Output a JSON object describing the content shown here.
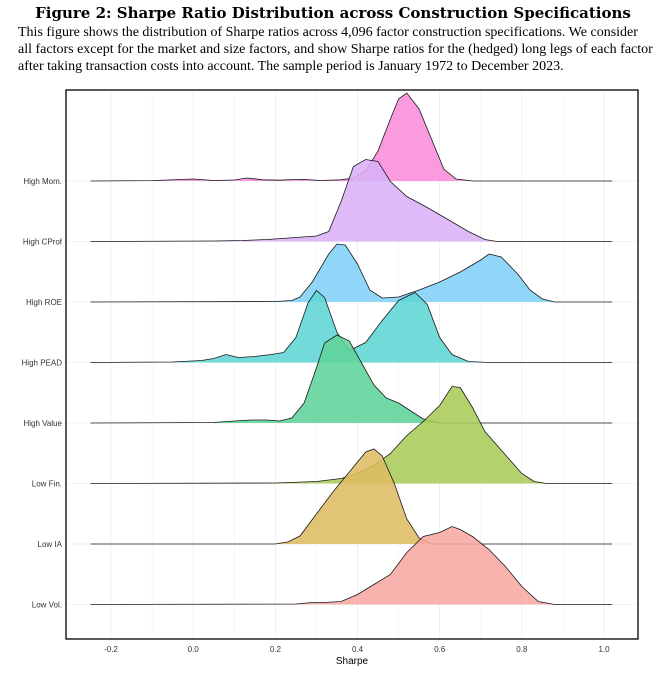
{
  "figure": {
    "title": "Figure 2: Sharpe Ratio Distribution across Construction Specifications",
    "caption": "This figure shows the distribution of Sharpe ratios across 4,096 factor construction specifications. We consider all factors except for the market and size factors, and show Sharpe ratios for the (hedged) long legs of each factor after taking transaction costs into account. The sample period is January 1972 to December 2023."
  },
  "chart_data": {
    "type": "ridgeline",
    "xlabel": "Sharpe",
    "ylabel": "",
    "xlim": [
      -0.3,
      1.1
    ],
    "x_ticks": [
      -0.2,
      0.0,
      0.2,
      0.4,
      0.6,
      0.8,
      1.0
    ],
    "x_tick_labels": [
      "-0.2",
      "0.0",
      "0.2",
      "0.4",
      "0.6",
      "0.8",
      "1.0"
    ],
    "grid": true,
    "series": [
      {
        "name": "High Mom.",
        "color": "#F98DDB",
        "points": [
          [
            -0.25,
            0
          ],
          [
            -0.1,
            0.004
          ],
          [
            0,
            0.02
          ],
          [
            0.05,
            0.005
          ],
          [
            0.1,
            0.01
          ],
          [
            0.13,
            0.03
          ],
          [
            0.17,
            0.012
          ],
          [
            0.21,
            0.008
          ],
          [
            0.24,
            0.014
          ],
          [
            0.27,
            0.016
          ],
          [
            0.31,
            0.005
          ],
          [
            0.36,
            0.012
          ],
          [
            0.39,
            0.03
          ],
          [
            0.42,
            0.1
          ],
          [
            0.45,
            0.3
          ],
          [
            0.48,
            0.62
          ],
          [
            0.5,
            0.82
          ],
          [
            0.52,
            0.88
          ],
          [
            0.55,
            0.72
          ],
          [
            0.58,
            0.42
          ],
          [
            0.61,
            0.12
          ],
          [
            0.64,
            0.02
          ],
          [
            0.68,
            0
          ],
          [
            1.02,
            0
          ]
        ]
      },
      {
        "name": "High CProf",
        "color": "#D9B0F7",
        "points": [
          [
            -0.25,
            0
          ],
          [
            0.05,
            0.005
          ],
          [
            0.12,
            0.01
          ],
          [
            0.18,
            0.02
          ],
          [
            0.25,
            0.04
          ],
          [
            0.3,
            0.055
          ],
          [
            0.33,
            0.1
          ],
          [
            0.36,
            0.4
          ],
          [
            0.39,
            0.75
          ],
          [
            0.42,
            0.82
          ],
          [
            0.45,
            0.8
          ],
          [
            0.48,
            0.6
          ],
          [
            0.52,
            0.45
          ],
          [
            0.57,
            0.34
          ],
          [
            0.62,
            0.22
          ],
          [
            0.67,
            0.1
          ],
          [
            0.71,
            0.02
          ],
          [
            0.74,
            0
          ],
          [
            1.02,
            0
          ]
        ]
      },
      {
        "name": "High ROE",
        "color": "#7FD0F7",
        "points": [
          [
            -0.25,
            0
          ],
          [
            0.2,
            0.005
          ],
          [
            0.24,
            0.015
          ],
          [
            0.26,
            0.05
          ],
          [
            0.29,
            0.2
          ],
          [
            0.33,
            0.48
          ],
          [
            0.35,
            0.58
          ],
          [
            0.37,
            0.57
          ],
          [
            0.4,
            0.38
          ],
          [
            0.43,
            0.12
          ],
          [
            0.46,
            0.04
          ],
          [
            0.5,
            0.05
          ],
          [
            0.55,
            0.12
          ],
          [
            0.6,
            0.2
          ],
          [
            0.65,
            0.3
          ],
          [
            0.7,
            0.42
          ],
          [
            0.72,
            0.48
          ],
          [
            0.75,
            0.45
          ],
          [
            0.79,
            0.28
          ],
          [
            0.82,
            0.12
          ],
          [
            0.85,
            0.03
          ],
          [
            0.88,
            0
          ],
          [
            1.02,
            0
          ]
        ]
      },
      {
        "name": "High PEAD",
        "color": "#5ED6D4",
        "points": [
          [
            -0.25,
            0
          ],
          [
            -0.05,
            0.005
          ],
          [
            0.02,
            0.02
          ],
          [
            0.05,
            0.04
          ],
          [
            0.08,
            0.08
          ],
          [
            0.11,
            0.05
          ],
          [
            0.15,
            0.06
          ],
          [
            0.19,
            0.08
          ],
          [
            0.22,
            0.1
          ],
          [
            0.25,
            0.25
          ],
          [
            0.28,
            0.6
          ],
          [
            0.3,
            0.72
          ],
          [
            0.32,
            0.65
          ],
          [
            0.35,
            0.3
          ],
          [
            0.38,
            0.12
          ],
          [
            0.42,
            0.2
          ],
          [
            0.46,
            0.42
          ],
          [
            0.5,
            0.62
          ],
          [
            0.54,
            0.7
          ],
          [
            0.57,
            0.58
          ],
          [
            0.6,
            0.25
          ],
          [
            0.63,
            0.08
          ],
          [
            0.67,
            0.01
          ],
          [
            0.72,
            0
          ],
          [
            1.02,
            0
          ]
        ]
      },
      {
        "name": "High Value",
        "color": "#5ED39A",
        "points": [
          [
            -0.25,
            0
          ],
          [
            0.05,
            0.005
          ],
          [
            0.1,
            0.02
          ],
          [
            0.14,
            0.03
          ],
          [
            0.18,
            0.03
          ],
          [
            0.21,
            0.02
          ],
          [
            0.24,
            0.05
          ],
          [
            0.27,
            0.2
          ],
          [
            0.3,
            0.55
          ],
          [
            0.32,
            0.8
          ],
          [
            0.35,
            0.88
          ],
          [
            0.38,
            0.82
          ],
          [
            0.41,
            0.6
          ],
          [
            0.44,
            0.38
          ],
          [
            0.47,
            0.25
          ],
          [
            0.5,
            0.2
          ],
          [
            0.53,
            0.12
          ],
          [
            0.56,
            0.04
          ],
          [
            0.6,
            0
          ],
          [
            1.02,
            0
          ]
        ]
      },
      {
        "name": "Low Fin.",
        "color": "#A8CC5A",
        "points": [
          [
            -0.25,
            0
          ],
          [
            0.2,
            0.005
          ],
          [
            0.3,
            0.02
          ],
          [
            0.36,
            0.05
          ],
          [
            0.4,
            0.1
          ],
          [
            0.44,
            0.18
          ],
          [
            0.48,
            0.3
          ],
          [
            0.52,
            0.48
          ],
          [
            0.56,
            0.62
          ],
          [
            0.6,
            0.78
          ],
          [
            0.63,
            0.97
          ],
          [
            0.65,
            0.96
          ],
          [
            0.68,
            0.76
          ],
          [
            0.71,
            0.52
          ],
          [
            0.74,
            0.38
          ],
          [
            0.77,
            0.24
          ],
          [
            0.8,
            0.1
          ],
          [
            0.83,
            0.02
          ],
          [
            0.86,
            0
          ],
          [
            1.02,
            0
          ]
        ]
      },
      {
        "name": "Low IA",
        "color": "#DDBC63",
        "points": [
          [
            -0.25,
            0
          ],
          [
            0.2,
            0
          ],
          [
            0.23,
            0.02
          ],
          [
            0.26,
            0.08
          ],
          [
            0.3,
            0.3
          ],
          [
            0.34,
            0.52
          ],
          [
            0.38,
            0.72
          ],
          [
            0.42,
            0.92
          ],
          [
            0.44,
            0.95
          ],
          [
            0.46,
            0.88
          ],
          [
            0.49,
            0.6
          ],
          [
            0.52,
            0.25
          ],
          [
            0.55,
            0.06
          ],
          [
            0.58,
            0
          ],
          [
            1.02,
            0
          ]
        ]
      },
      {
        "name": "Low Vol.",
        "color": "#F7A8A4",
        "points": [
          [
            -0.25,
            0
          ],
          [
            0.25,
            0.005
          ],
          [
            0.29,
            0.02
          ],
          [
            0.32,
            0.02
          ],
          [
            0.36,
            0.03
          ],
          [
            0.4,
            0.1
          ],
          [
            0.44,
            0.2
          ],
          [
            0.48,
            0.3
          ],
          [
            0.52,
            0.52
          ],
          [
            0.56,
            0.68
          ],
          [
            0.6,
            0.72
          ],
          [
            0.63,
            0.78
          ],
          [
            0.65,
            0.75
          ],
          [
            0.68,
            0.68
          ],
          [
            0.72,
            0.55
          ],
          [
            0.76,
            0.38
          ],
          [
            0.8,
            0.18
          ],
          [
            0.84,
            0.03
          ],
          [
            0.88,
            0
          ],
          [
            1.02,
            0
          ]
        ]
      }
    ]
  }
}
